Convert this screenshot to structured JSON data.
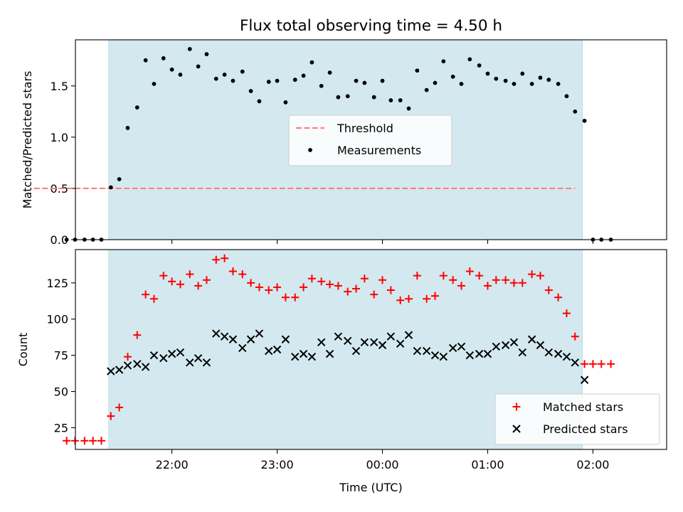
{
  "chart_data": [
    {
      "type": "scatter",
      "title": "Flux total observing time = 4.50 h",
      "ylabel": "Matched/Predicted stars",
      "xlabel": "",
      "x_unit": "hours_UTC_continuous",
      "ylim": [
        0,
        1.95
      ],
      "xlim": [
        21.0833,
        26.7
      ],
      "yticks": [
        0.0,
        0.5,
        1.0,
        1.5
      ],
      "ytick_labels": [
        "0.0",
        "0.5",
        "1.0",
        "1.5"
      ],
      "shaded_interval": [
        21.4,
        25.9
      ],
      "shade_color": "#d3e9ef",
      "legend_position": "center",
      "series": [
        {
          "name": "Threshold",
          "kind": "dashed-line",
          "color": "#ff7f7f",
          "x": [
            20.69,
            25.83
          ],
          "y": [
            0.5,
            0.5
          ]
        },
        {
          "name": "Measurements",
          "kind": "dots",
          "color": "#000000",
          "x": [
            21.0,
            21.08,
            21.17,
            21.25,
            21.33,
            21.42,
            21.5,
            21.58,
            21.67,
            21.75,
            21.83,
            21.92,
            22.0,
            22.08,
            22.17,
            22.25,
            22.33,
            22.42,
            22.5,
            22.58,
            22.67,
            22.75,
            22.83,
            22.92,
            23.0,
            23.08,
            23.17,
            23.25,
            23.33,
            23.42,
            23.5,
            23.58,
            23.67,
            23.75,
            23.83,
            23.92,
            24.0,
            24.08,
            24.17,
            24.25,
            24.33,
            24.42,
            24.5,
            24.58,
            24.67,
            24.75,
            24.83,
            24.92,
            25.0,
            25.08,
            25.17,
            25.25,
            25.33,
            25.42,
            25.5,
            25.58,
            25.67,
            25.75,
            25.83,
            25.92,
            26.0,
            26.08,
            26.17
          ],
          "y": [
            0.0,
            0.0,
            0.0,
            0.0,
            0.0,
            0.51,
            0.59,
            1.09,
            1.29,
            1.75,
            1.52,
            1.77,
            1.66,
            1.61,
            1.86,
            1.69,
            1.81,
            1.57,
            1.61,
            1.55,
            1.64,
            1.45,
            1.35,
            1.54,
            1.55,
            1.34,
            1.56,
            1.6,
            1.73,
            1.5,
            1.63,
            1.39,
            1.4,
            1.55,
            1.53,
            1.39,
            1.55,
            1.36,
            1.36,
            1.28,
            1.65,
            1.46,
            1.53,
            1.74,
            1.59,
            1.52,
            1.76,
            1.7,
            1.62,
            1.57,
            1.55,
            1.52,
            1.62,
            1.52,
            1.58,
            1.56,
            1.52,
            1.4,
            1.25,
            1.16,
            0.0,
            0.0,
            0.0
          ]
        }
      ]
    },
    {
      "type": "scatter",
      "title": "",
      "ylabel": "Count",
      "xlabel": "Time (UTC)",
      "x_unit": "hours_UTC_continuous",
      "ylim": [
        10,
        148
      ],
      "xlim": [
        21.0833,
        26.7
      ],
      "yticks": [
        25,
        50,
        75,
        100,
        125
      ],
      "ytick_labels": [
        "25",
        "50",
        "75",
        "100",
        "125"
      ],
      "xticks": [
        22,
        23,
        24,
        25,
        26
      ],
      "xtick_labels": [
        "22:00",
        "23:00",
        "00:00",
        "01:00",
        "02:00"
      ],
      "shaded_interval": [
        21.4,
        25.9
      ],
      "shade_color": "#d3e9ef",
      "legend_position": "lower right",
      "series": [
        {
          "name": "Matched stars",
          "kind": "plus",
          "color": "#ff0000",
          "x": [
            21.0,
            21.08,
            21.17,
            21.25,
            21.33,
            21.42,
            21.5,
            21.58,
            21.67,
            21.75,
            21.83,
            21.92,
            22.0,
            22.08,
            22.17,
            22.25,
            22.33,
            22.42,
            22.5,
            22.58,
            22.67,
            22.75,
            22.83,
            22.92,
            23.0,
            23.08,
            23.17,
            23.25,
            23.33,
            23.42,
            23.5,
            23.58,
            23.67,
            23.75,
            23.83,
            23.92,
            24.0,
            24.08,
            24.17,
            24.25,
            24.33,
            24.42,
            24.5,
            24.58,
            24.67,
            24.75,
            24.83,
            24.92,
            25.0,
            25.08,
            25.17,
            25.25,
            25.33,
            25.42,
            25.5,
            25.58,
            25.67,
            25.75,
            25.83,
            25.92,
            26.0,
            26.08,
            26.17
          ],
          "y": [
            16,
            16,
            16,
            16,
            16,
            33,
            39,
            74,
            89,
            117,
            114,
            130,
            126,
            124,
            131,
            123,
            127,
            141,
            142,
            133,
            131,
            125,
            122,
            120,
            122,
            115,
            115,
            122,
            128,
            126,
            124,
            123,
            119,
            121,
            128,
            117,
            127,
            120,
            113,
            114,
            130,
            114,
            116,
            130,
            127,
            123,
            133,
            130,
            123,
            127,
            127,
            125,
            125,
            131,
            130,
            120,
            115,
            104,
            88,
            69,
            69,
            69,
            69
          ]
        },
        {
          "name": "Predicted stars",
          "kind": "x",
          "color": "#000000",
          "x": [
            21.42,
            21.5,
            21.58,
            21.67,
            21.75,
            21.83,
            21.92,
            22.0,
            22.08,
            22.17,
            22.25,
            22.33,
            22.42,
            22.5,
            22.58,
            22.67,
            22.75,
            22.83,
            22.92,
            23.0,
            23.08,
            23.17,
            23.25,
            23.33,
            23.42,
            23.5,
            23.58,
            23.67,
            23.75,
            23.83,
            23.92,
            24.0,
            24.08,
            24.17,
            24.25,
            24.33,
            24.42,
            24.5,
            24.58,
            24.67,
            24.75,
            24.83,
            24.92,
            25.0,
            25.08,
            25.17,
            25.25,
            25.33,
            25.42,
            25.5,
            25.58,
            25.67,
            25.75,
            25.83
          ],
          "y": [
            64,
            65,
            68,
            69,
            67,
            75,
            73,
            76,
            77,
            70,
            73,
            70,
            90,
            88,
            86,
            80,
            86,
            90,
            78,
            79,
            86,
            74,
            76,
            74,
            84,
            76,
            88,
            85,
            78,
            84,
            84,
            82,
            88,
            83,
            89,
            78,
            78,
            75,
            74,
            80,
            81,
            75,
            76,
            76,
            81,
            82,
            84,
            77,
            86,
            82,
            77,
            76,
            74,
            70
          ]
        },
        {
          "name": "",
          "kind": "x",
          "color": "#000000",
          "x": [
            25.92
          ],
          "y": [
            58
          ]
        }
      ]
    }
  ]
}
